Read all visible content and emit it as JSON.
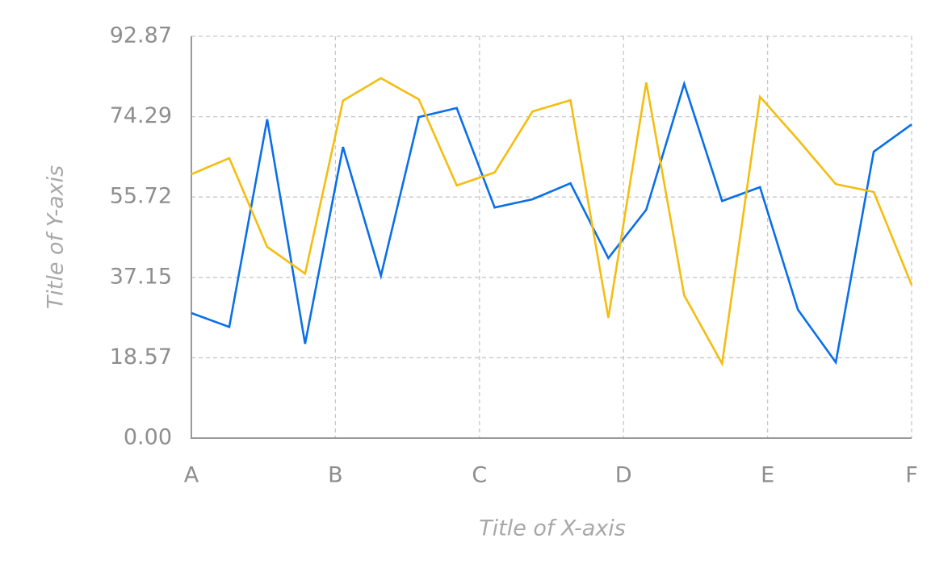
{
  "chart_data": {
    "type": "line",
    "x_axis_label": "Title of X-axis",
    "y_axis_label": "Title of Y-axis",
    "x": [
      0,
      1,
      2,
      3,
      4,
      5,
      6,
      7,
      8,
      9,
      10,
      11,
      12,
      13,
      14,
      15,
      16,
      17,
      18,
      19
    ],
    "series": [
      {
        "color": "#0a6fe8",
        "values": [
          28.9,
          25.7,
          73.7,
          21.8,
          67.3,
          37.5,
          74.2,
          76.3,
          53.3,
          55.2,
          58.9,
          41.6,
          52.8,
          81.9,
          54.8,
          58.0,
          29.7,
          17.5,
          66.2,
          72.5
        ]
      },
      {
        "color": "#f5bd0f",
        "values": [
          61.0,
          64.7,
          44.2,
          38.0,
          78.0,
          83.2,
          78.3,
          58.4,
          61.4,
          75.5,
          78.1,
          27.8,
          82.2,
          33.0,
          17.2,
          78.9,
          69.0,
          58.7,
          56.9,
          35.4
        ]
      }
    ],
    "xlim": [
      0,
      19
    ],
    "xticks": [
      {
        "value": 0,
        "label": "A"
      },
      {
        "value": 3.8,
        "label": "B"
      },
      {
        "value": 7.6,
        "label": "C"
      },
      {
        "value": 11.4,
        "label": "D"
      },
      {
        "value": 15.2,
        "label": "E"
      },
      {
        "value": 19,
        "label": "F"
      }
    ],
    "ylim": [
      0,
      92.87
    ],
    "yticks": [
      {
        "value": 0,
        "label": "0.00"
      },
      18.57,
      37.15,
      55.72,
      74.29,
      92.87
    ],
    "grid": true
  }
}
